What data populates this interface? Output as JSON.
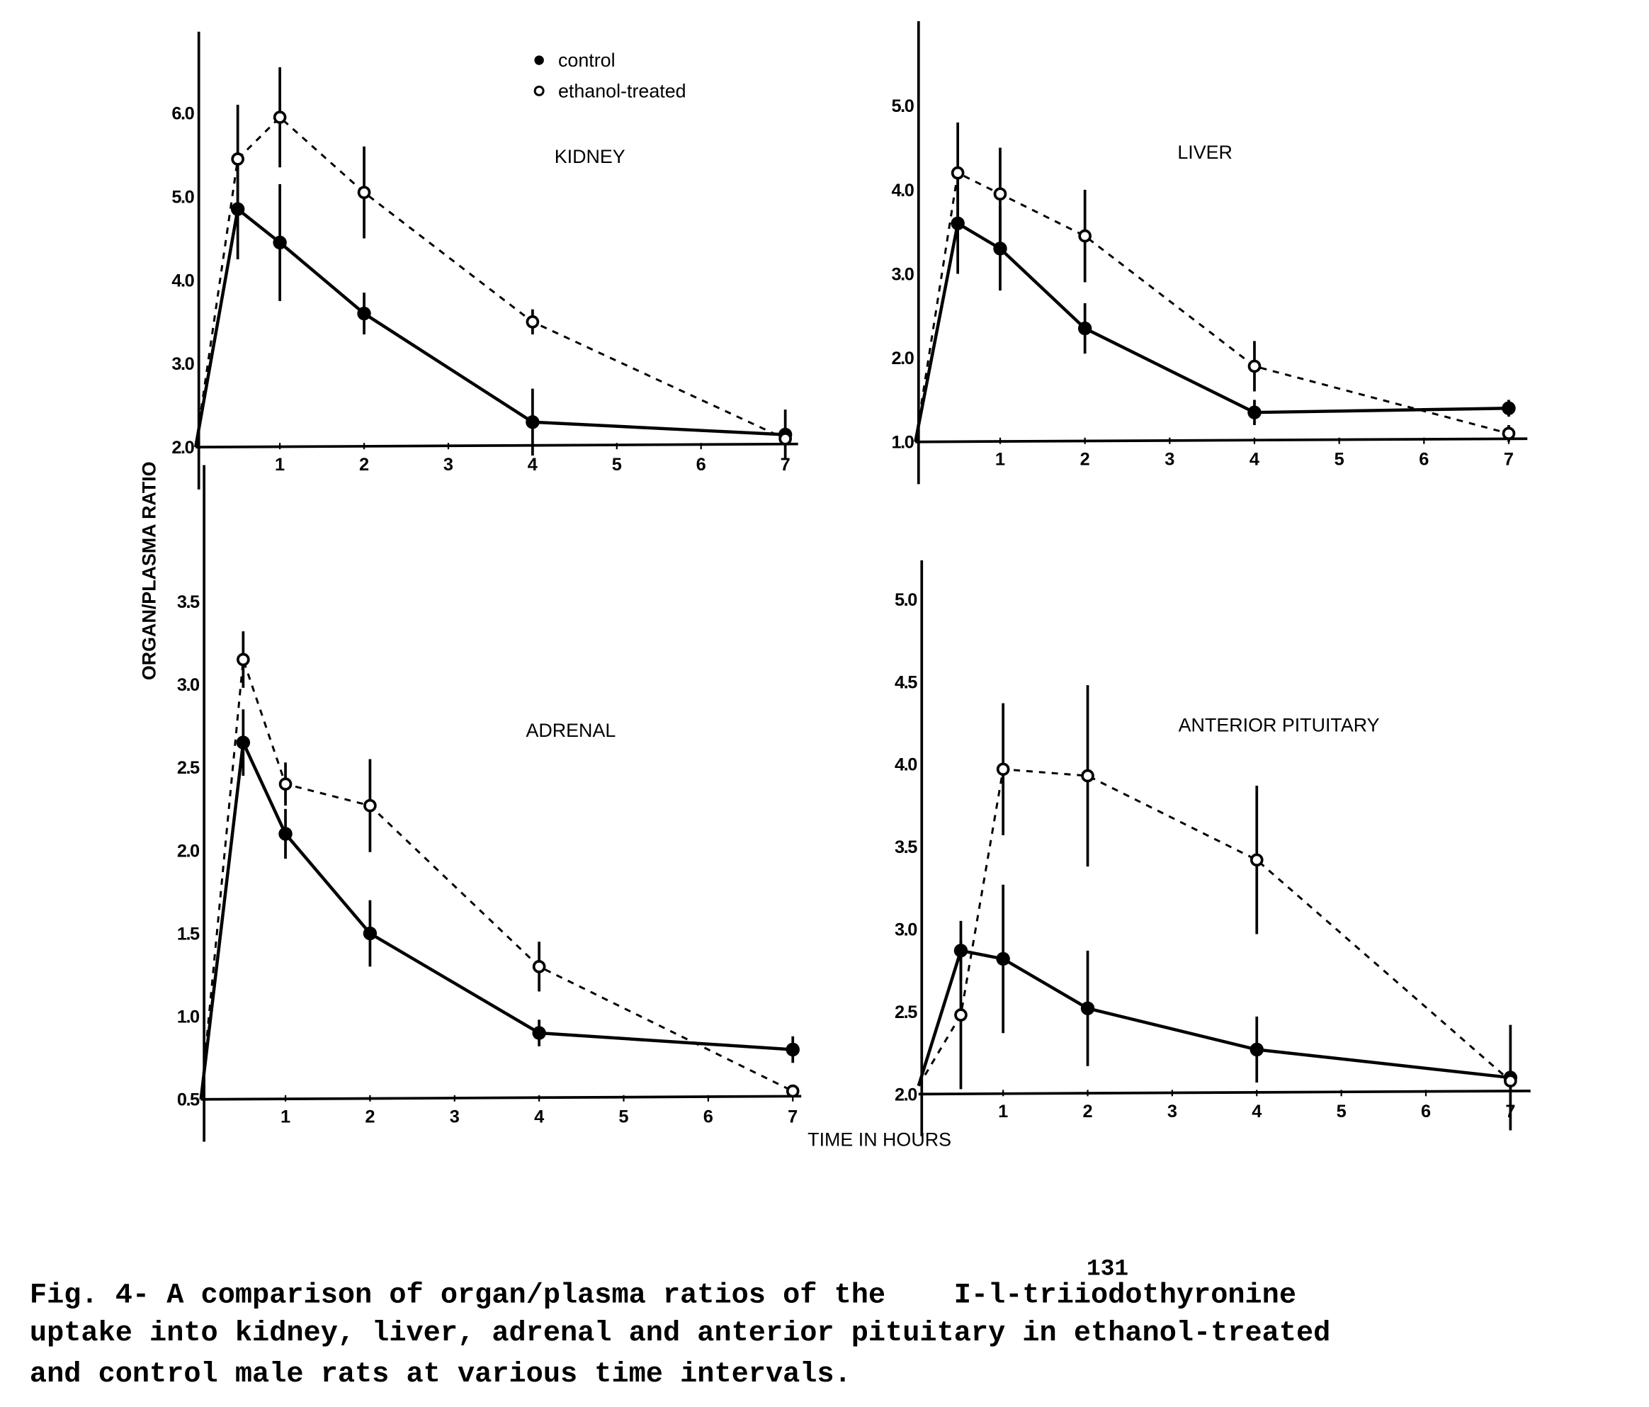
{
  "legend": {
    "control": "control",
    "ethanol": "ethanol-treated"
  },
  "ylabel": "ORGAN/PLASMA RATIO",
  "xlabel": "TIME IN HOURS",
  "caption": {
    "superscript": "131",
    "lines": [
      "Fig. 4- A comparison of organ/plasma ratios of the    I-l-triiodothyronine",
      "uptake into kidney, liver, adrenal and anterior pituitary in ethanol-treated",
      "and control male rats at various time intervals."
    ]
  },
  "colors": {
    "ink": "#000000",
    "paper": "#ffffff"
  },
  "chart_data": [
    {
      "type": "line",
      "title": "KIDNEY",
      "xlabel": "TIME IN HOURS",
      "ylabel": "ORGAN/PLASMA RATIO",
      "xticks": [
        1,
        2,
        3,
        4,
        5,
        6,
        7
      ],
      "yticks": [
        2.0,
        3.0,
        4.0,
        5.0,
        6.0
      ],
      "ytick_labels": [
        "2.0",
        "3.0",
        "4.0",
        "5.0",
        "6.0"
      ],
      "xlim": [
        0,
        7
      ],
      "ylim": [
        2.0,
        6.0
      ],
      "series": [
        {
          "name": "control",
          "marker": "filled",
          "style": "solid",
          "x": [
            0,
            0.5,
            1,
            2,
            4,
            7
          ],
          "y": [
            2.0,
            4.85,
            4.45,
            3.6,
            2.3,
            2.15
          ],
          "err": [
            0,
            0.6,
            0.7,
            0.25,
            0.4,
            0.3
          ]
        },
        {
          "name": "ethanol-treated",
          "marker": "open",
          "style": "dashed",
          "x": [
            0,
            0.5,
            1,
            2,
            4,
            7
          ],
          "y": [
            2.0,
            5.45,
            5.95,
            5.05,
            3.5,
            2.1
          ],
          "err": [
            0,
            0.65,
            0.6,
            0.55,
            0.15,
            0.05
          ]
        }
      ]
    },
    {
      "type": "line",
      "title": "LIVER",
      "xlabel": "TIME IN HOURS",
      "ylabel": "ORGAN/PLASMA RATIO",
      "xticks": [
        1,
        2,
        3,
        4,
        5,
        6,
        7
      ],
      "yticks": [
        1.0,
        2.0,
        3.0,
        4.0,
        5.0
      ],
      "ytick_labels": [
        "1.0",
        "2.0",
        "3.0",
        "4.0",
        "5.0"
      ],
      "xlim": [
        0,
        7
      ],
      "ylim": [
        1.0,
        5.0
      ],
      "series": [
        {
          "name": "control",
          "marker": "filled",
          "style": "solid",
          "x": [
            0,
            0.5,
            1,
            2,
            4,
            7
          ],
          "y": [
            1.0,
            3.6,
            3.3,
            2.35,
            1.35,
            1.4
          ],
          "err": [
            0,
            0.6,
            0.5,
            0.3,
            0.15,
            0.1
          ]
        },
        {
          "name": "ethanol-treated",
          "marker": "open",
          "style": "dashed",
          "x": [
            0,
            0.5,
            1,
            2,
            4,
            7
          ],
          "y": [
            1.0,
            4.2,
            3.95,
            3.45,
            1.9,
            1.1
          ],
          "err": [
            0,
            0.6,
            0.55,
            0.55,
            0.3,
            0.1
          ]
        }
      ]
    },
    {
      "type": "line",
      "title": "ADRENAL",
      "xlabel": "TIME IN HOURS",
      "ylabel": "ORGAN/PLASMA RATIO",
      "xticks": [
        1,
        2,
        3,
        4,
        5,
        6,
        7
      ],
      "yticks": [
        0.5,
        1.0,
        1.5,
        2.0,
        2.5,
        3.0,
        3.5
      ],
      "ytick_labels": [
        "0.5",
        "1.0",
        "1.5",
        "2.0",
        "2.5",
        "3.0",
        "3.5"
      ],
      "xlim": [
        0,
        7
      ],
      "ylim": [
        0.5,
        3.5
      ],
      "series": [
        {
          "name": "control",
          "marker": "filled",
          "style": "solid",
          "x": [
            0,
            0.5,
            1,
            2,
            4,
            7
          ],
          "y": [
            0.5,
            2.65,
            2.1,
            1.5,
            0.9,
            0.8
          ],
          "err": [
            0,
            0.2,
            0.15,
            0.2,
            0.08,
            0.08
          ]
        },
        {
          "name": "ethanol-treated",
          "marker": "open",
          "style": "dashed",
          "x": [
            0,
            0.5,
            1,
            2,
            4,
            7
          ],
          "y": [
            0.5,
            3.15,
            2.4,
            2.27,
            1.3,
            0.55
          ],
          "err": [
            0,
            0.17,
            0.13,
            0.28,
            0.15,
            0.03
          ]
        }
      ]
    },
    {
      "type": "line",
      "title": "ANTERIOR PITUITARY",
      "xlabel": "TIME IN HOURS",
      "ylabel": "ORGAN/PLASMA RATIO",
      "xticks": [
        1,
        2,
        3,
        4,
        5,
        6,
        7
      ],
      "yticks": [
        2.0,
        2.5,
        3.0,
        3.5,
        4.0,
        4.5,
        5.0
      ],
      "ytick_labels": [
        "2.0",
        "2.5",
        "3.0",
        "3.5",
        "4.0",
        "4.5",
        "5.0"
      ],
      "xlim": [
        0,
        7
      ],
      "ylim": [
        2.0,
        5.0
      ],
      "series": [
        {
          "name": "control",
          "marker": "filled",
          "style": "solid",
          "x": [
            0,
            0.5,
            1,
            2,
            4,
            7
          ],
          "y": [
            2.05,
            2.87,
            2.82,
            2.52,
            2.27,
            2.1
          ],
          "err": [
            0,
            0.18,
            0.45,
            0.35,
            0.2,
            0.32
          ]
        },
        {
          "name": "ethanol-treated",
          "marker": "open",
          "style": "dashed",
          "x": [
            0,
            0.5,
            1,
            2,
            4,
            7
          ],
          "y": [
            2.05,
            2.48,
            3.97,
            3.93,
            3.42,
            2.08
          ],
          "err": [
            0,
            0.45,
            0.4,
            0.55,
            0.45,
            0.05
          ]
        }
      ]
    }
  ]
}
